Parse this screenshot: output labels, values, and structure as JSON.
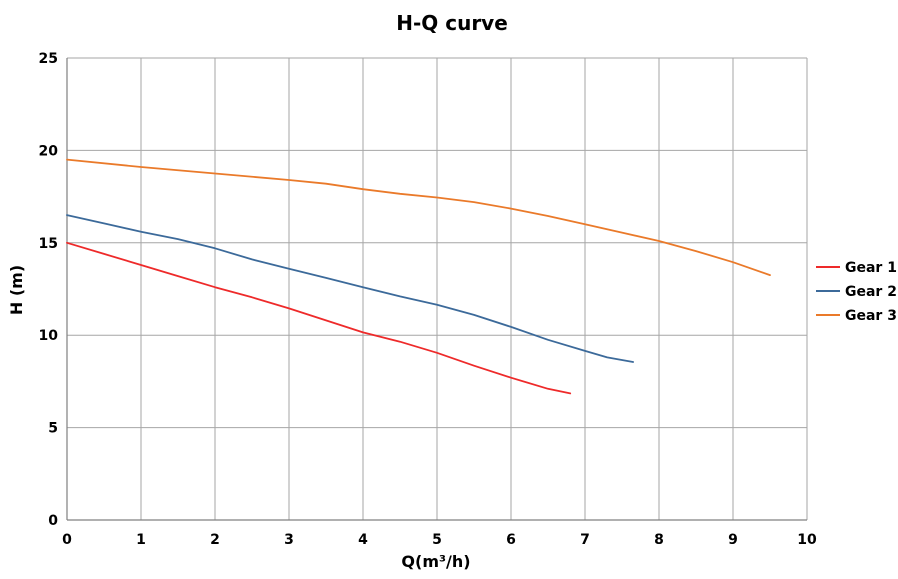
{
  "chart_data": {
    "type": "line",
    "title": "H-Q  curve",
    "xlabel": "Q(m³/h)",
    "ylabel": "H  (m)",
    "xlim": [
      0,
      10
    ],
    "ylim": [
      0,
      25
    ],
    "x_ticks": [
      "0",
      "1",
      "2",
      "3",
      "4",
      "5",
      "6",
      "7",
      "8",
      "9",
      "10"
    ],
    "y_ticks": [
      "0",
      "5",
      "10",
      "15",
      "20",
      "25"
    ],
    "grid": true,
    "legend_position": "right",
    "series": [
      {
        "name": "Gear 1",
        "color": "#ee2a2a",
        "points": [
          [
            0,
            15.0
          ],
          [
            0.5,
            14.4
          ],
          [
            1,
            13.8
          ],
          [
            1.5,
            13.2
          ],
          [
            2,
            12.6
          ],
          [
            2.5,
            12.05
          ],
          [
            3,
            11.45
          ],
          [
            3.5,
            10.8
          ],
          [
            4,
            10.15
          ],
          [
            4.5,
            9.65
          ],
          [
            5,
            9.05
          ],
          [
            5.5,
            8.35
          ],
          [
            6,
            7.7
          ],
          [
            6.5,
            7.1
          ],
          [
            6.8,
            6.85
          ]
        ]
      },
      {
        "name": "Gear 2",
        "color": "#3c6a9a",
        "points": [
          [
            0,
            16.5
          ],
          [
            0.5,
            16.05
          ],
          [
            1,
            15.6
          ],
          [
            1.5,
            15.2
          ],
          [
            2,
            14.7
          ],
          [
            2.5,
            14.1
          ],
          [
            3,
            13.6
          ],
          [
            3.5,
            13.1
          ],
          [
            4,
            12.6
          ],
          [
            4.5,
            12.1
          ],
          [
            5,
            11.65
          ],
          [
            5.5,
            11.1
          ],
          [
            6,
            10.45
          ],
          [
            6.5,
            9.75
          ],
          [
            7,
            9.15
          ],
          [
            7.3,
            8.8
          ],
          [
            7.65,
            8.55
          ]
        ]
      },
      {
        "name": "Gear 3",
        "color": "#ea7a2a",
        "points": [
          [
            0,
            19.5
          ],
          [
            1,
            19.1
          ],
          [
            2,
            18.75
          ],
          [
            3,
            18.4
          ],
          [
            3.5,
            18.2
          ],
          [
            4,
            17.9
          ],
          [
            4.5,
            17.65
          ],
          [
            5,
            17.45
          ],
          [
            5.5,
            17.2
          ],
          [
            6,
            16.85
          ],
          [
            6.5,
            16.45
          ],
          [
            7,
            16.0
          ],
          [
            7.5,
            15.55
          ],
          [
            8,
            15.1
          ],
          [
            8.5,
            14.55
          ],
          [
            9,
            13.95
          ],
          [
            9.5,
            13.25
          ]
        ]
      }
    ]
  }
}
